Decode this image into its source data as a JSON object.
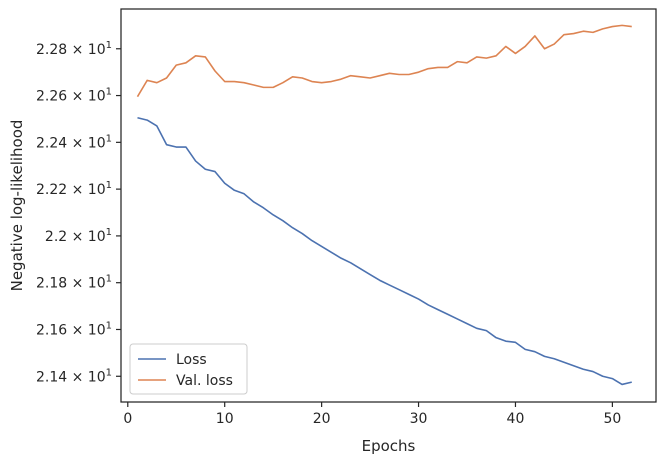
{
  "chart_data": {
    "type": "line",
    "title": "",
    "xlabel": "Epochs",
    "ylabel": "Negative log-likelihood",
    "xlim": [
      -0.7,
      54.5
    ],
    "ylim": [
      21.29,
      22.97
    ],
    "x_ticks": [
      0,
      10,
      20,
      30,
      40,
      50
    ],
    "x_tick_labels": [
      "0",
      "10",
      "20",
      "30",
      "40",
      "50"
    ],
    "y_ticks": [
      21.4,
      21.6,
      21.8,
      22.0,
      22.2,
      22.4,
      22.6,
      22.8
    ],
    "y_tick_labels": [
      {
        "mantissa": "2.14",
        "exponent": "1"
      },
      {
        "mantissa": "2.16",
        "exponent": "1"
      },
      {
        "mantissa": "2.18",
        "exponent": "1"
      },
      {
        "mantissa": "2.2",
        "exponent": "1"
      },
      {
        "mantissa": "2.22",
        "exponent": "1"
      },
      {
        "mantissa": "2.24",
        "exponent": "1"
      },
      {
        "mantissa": "2.26",
        "exponent": "1"
      },
      {
        "mantissa": "2.28",
        "exponent": "1"
      }
    ],
    "y_tick_base": "× 10",
    "grid": false,
    "legend_position": "lower-left",
    "x": [
      1,
      2,
      3,
      4,
      5,
      6,
      7,
      8,
      9,
      10,
      11,
      12,
      13,
      14,
      15,
      16,
      17,
      18,
      19,
      20,
      21,
      22,
      23,
      24,
      25,
      26,
      27,
      28,
      29,
      30,
      31,
      32,
      33,
      34,
      35,
      36,
      37,
      38,
      39,
      40,
      41,
      42,
      43,
      44,
      45,
      46,
      47,
      48,
      49,
      50,
      51,
      52
    ],
    "series": [
      {
        "name": "Loss",
        "color": "#4c72b0",
        "values": [
          22.505,
          22.495,
          22.47,
          22.39,
          22.38,
          22.38,
          22.32,
          22.285,
          22.275,
          22.225,
          22.195,
          22.18,
          22.145,
          22.12,
          22.09,
          22.065,
          22.035,
          22.01,
          21.98,
          21.955,
          21.93,
          21.905,
          21.885,
          21.86,
          21.835,
          21.81,
          21.79,
          21.77,
          21.75,
          21.73,
          21.705,
          21.685,
          21.665,
          21.645,
          21.625,
          21.605,
          21.595,
          21.565,
          21.55,
          21.545,
          21.515,
          21.505,
          21.485,
          21.475,
          21.46,
          21.445,
          21.43,
          21.42,
          21.4,
          21.39,
          21.365,
          21.375
        ]
      },
      {
        "name": "Val. loss",
        "color": "#dd8452",
        "values": [
          22.595,
          22.665,
          22.655,
          22.675,
          22.73,
          22.74,
          22.77,
          22.765,
          22.705,
          22.66,
          22.66,
          22.655,
          22.645,
          22.635,
          22.635,
          22.655,
          22.68,
          22.675,
          22.66,
          22.655,
          22.66,
          22.67,
          22.685,
          22.68,
          22.675,
          22.685,
          22.695,
          22.69,
          22.69,
          22.7,
          22.715,
          22.72,
          22.72,
          22.745,
          22.74,
          22.765,
          22.76,
          22.77,
          22.81,
          22.78,
          22.81,
          22.855,
          22.8,
          22.82,
          22.86,
          22.865,
          22.875,
          22.87,
          22.885,
          22.895,
          22.9,
          22.895
        ]
      }
    ]
  }
}
